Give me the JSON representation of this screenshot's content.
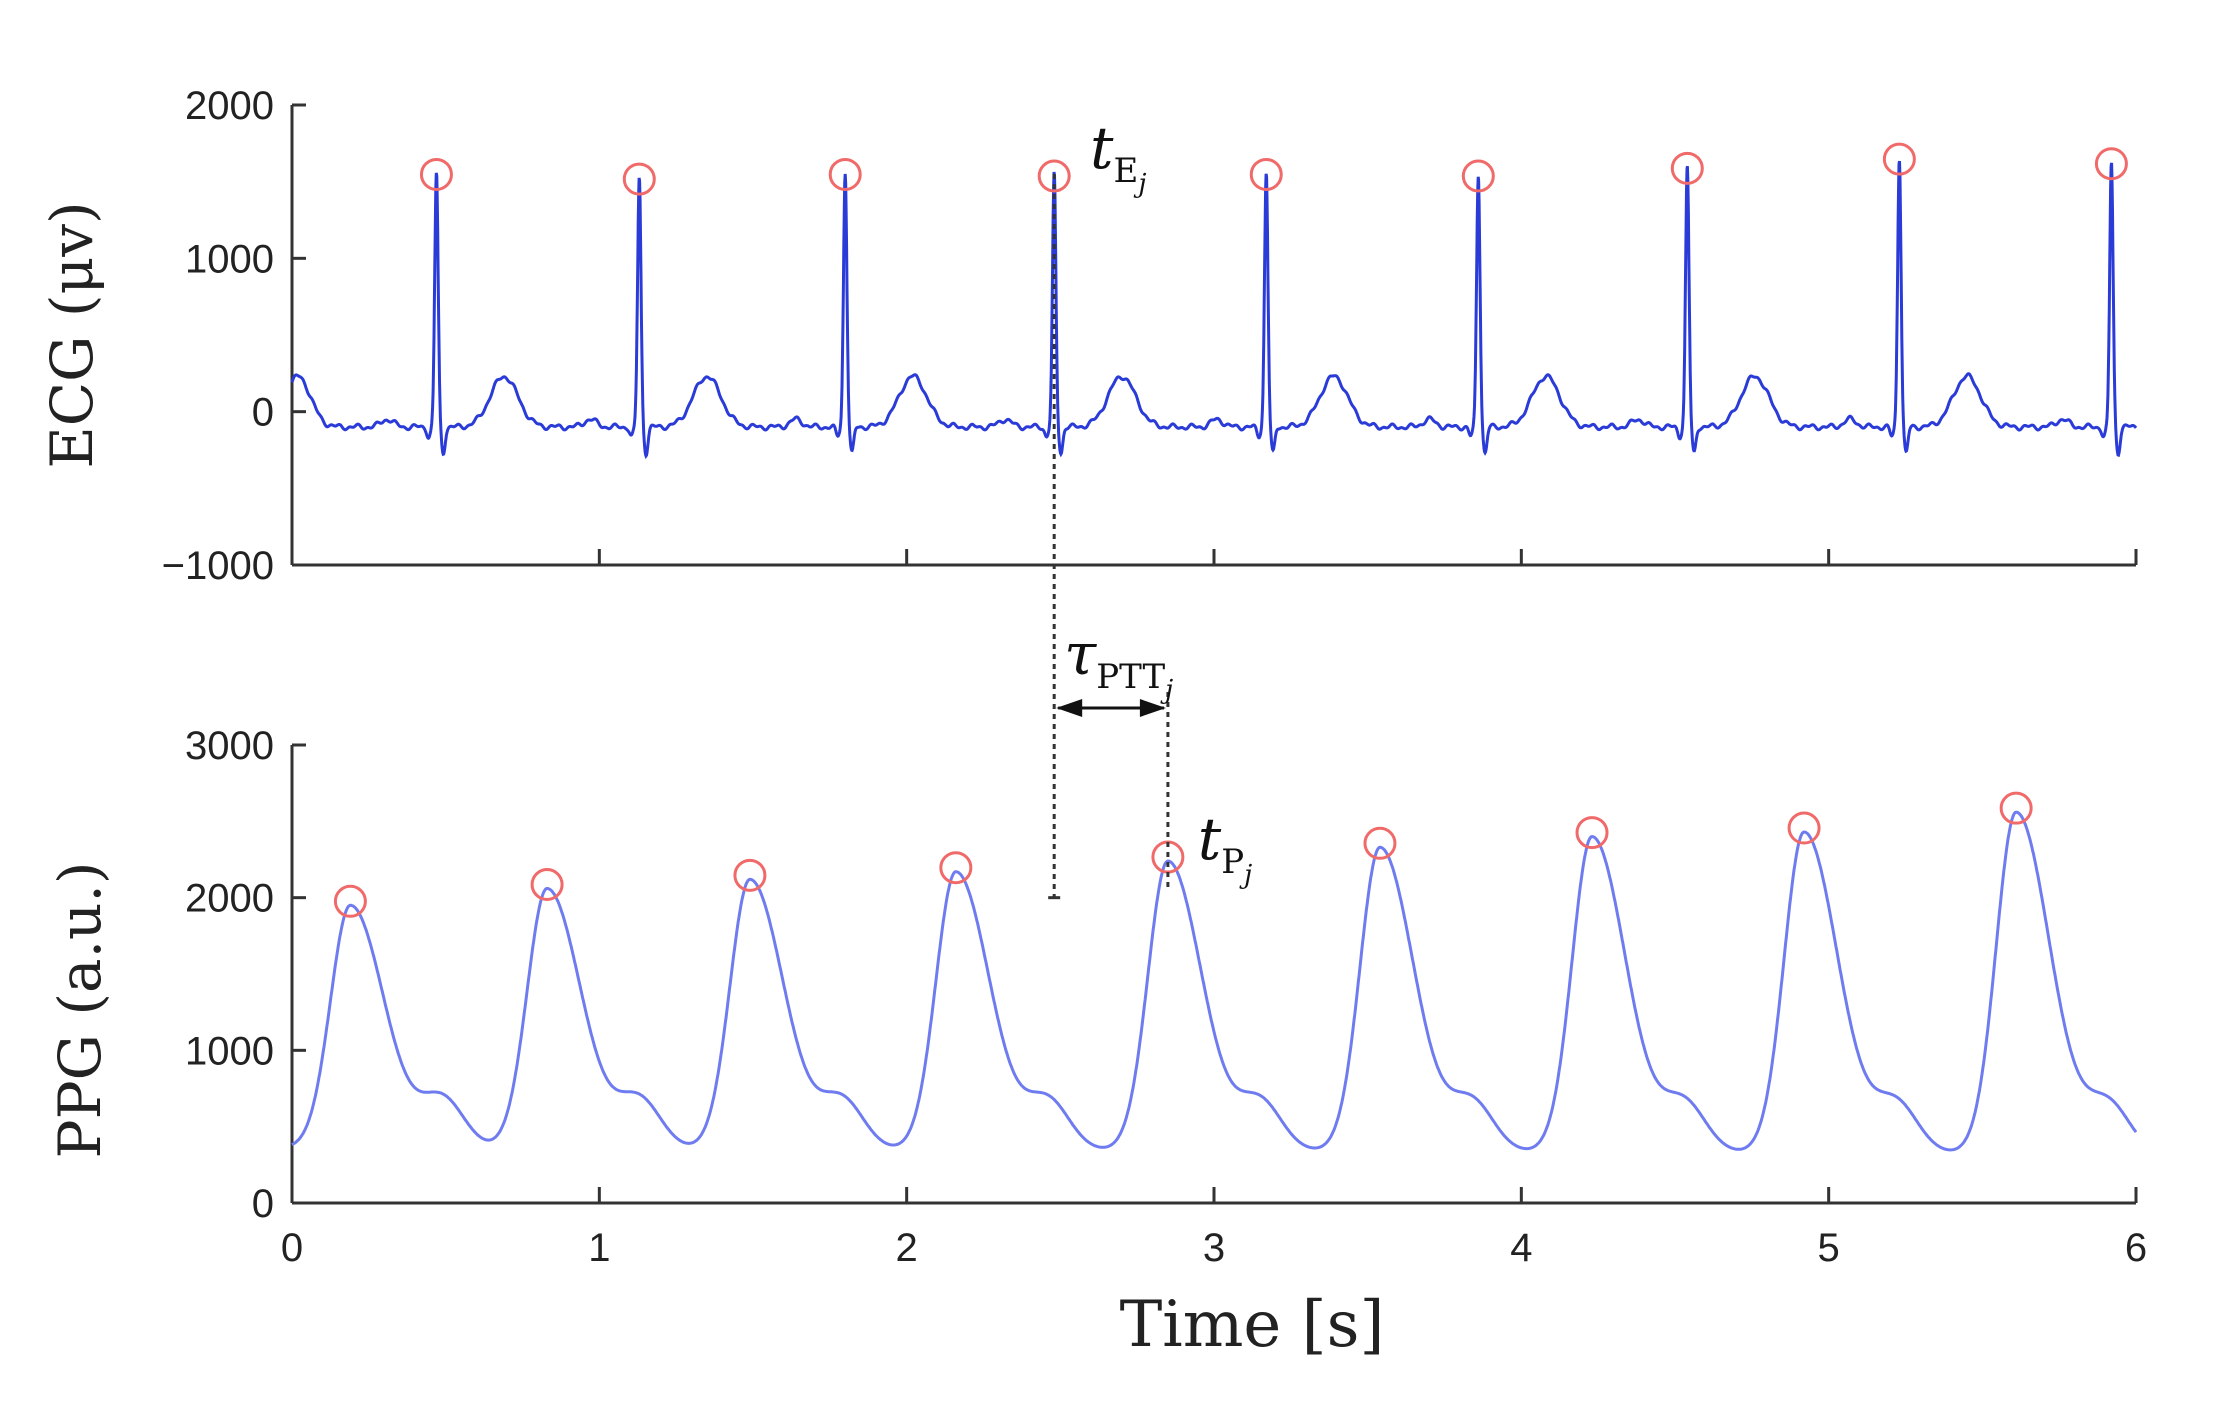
{
  "chart_data": [
    {
      "id": "ecg",
      "type": "line",
      "ylabel": "ECG (μv)",
      "xlim": [
        0,
        6
      ],
      "ylim": [
        -1000,
        2000
      ],
      "yticks": [
        -1000,
        0,
        1000,
        2000
      ],
      "ytick_labels": [
        "−1000",
        "0",
        "1000",
        "2000"
      ],
      "xticks": [
        0,
        1,
        2,
        3,
        4,
        5,
        6
      ],
      "show_xtick_labels": false,
      "grid": false,
      "line_color": "#2a3bd8",
      "marker_color": "#f06a6a",
      "baseline": -100,
      "r_peaks": {
        "t": [
          0.47,
          1.13,
          1.8,
          2.48,
          3.17,
          3.86,
          4.54,
          5.23,
          5.92
        ],
        "v": [
          1560,
          1530,
          1560,
          1550,
          1560,
          1550,
          1600,
          1660,
          1630
        ]
      },
      "annotation": {
        "base": "t",
        "sub": "E",
        "subsub": "j",
        "t": 2.48,
        "v": 1550
      }
    },
    {
      "id": "ppg",
      "type": "line",
      "ylabel": "PPG (a.u.)",
      "xlabel": "Time [s]",
      "xlim": [
        0,
        6
      ],
      "ylim": [
        0,
        3000
      ],
      "yticks": [
        0,
        1000,
        2000,
        3000
      ],
      "ytick_labels": [
        "0",
        "1000",
        "2000",
        "3000"
      ],
      "xticks": [
        0,
        1,
        2,
        3,
        4,
        5,
        6
      ],
      "xtick_labels": [
        "0",
        "1",
        "2",
        "3",
        "4",
        "5",
        "6"
      ],
      "grid": false,
      "line_color": "#6f7cf0",
      "marker_color": "#f06a6a",
      "peaks": {
        "t": [
          0.19,
          0.83,
          1.49,
          2.16,
          2.85,
          3.54,
          4.23,
          4.92,
          5.61
        ],
        "v": [
          1950,
          2060,
          2120,
          2170,
          2240,
          2330,
          2400,
          2430,
          2560
        ]
      },
      "annotation": {
        "base": "t",
        "sub": "P",
        "subsub": "j",
        "t": 2.85,
        "v": 2240
      }
    }
  ],
  "ptt_annotation": {
    "base": "τ",
    "sub": "PTT",
    "subsub": "j",
    "t_start": 2.48,
    "t_end": 2.85
  }
}
